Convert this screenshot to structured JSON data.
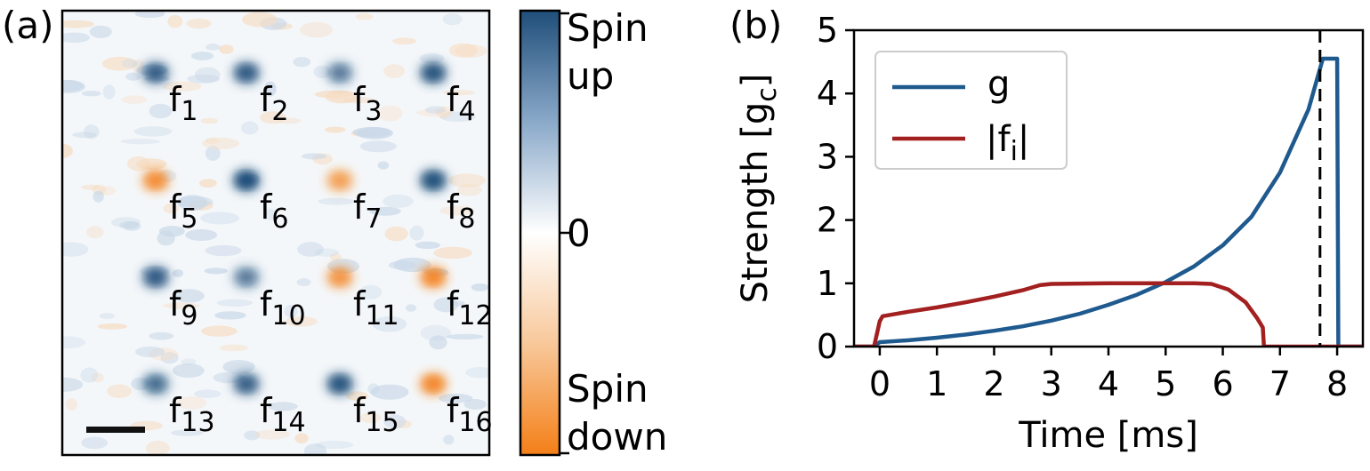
{
  "panel_a": {
    "label": "(a)",
    "spots": [
      {
        "name": "f",
        "sub": "1",
        "spin": "up",
        "strength": 0.8
      },
      {
        "name": "f",
        "sub": "2",
        "spin": "up",
        "strength": 0.85
      },
      {
        "name": "f",
        "sub": "3",
        "spin": "up",
        "strength": 0.6
      },
      {
        "name": "f",
        "sub": "4",
        "spin": "up",
        "strength": 0.9
      },
      {
        "name": "f",
        "sub": "5",
        "spin": "down",
        "strength": 0.8
      },
      {
        "name": "f",
        "sub": "6",
        "spin": "up",
        "strength": 1.0
      },
      {
        "name": "f",
        "sub": "7",
        "spin": "down",
        "strength": 0.6
      },
      {
        "name": "f",
        "sub": "8",
        "spin": "up",
        "strength": 0.95
      },
      {
        "name": "f",
        "sub": "9",
        "spin": "up",
        "strength": 0.85
      },
      {
        "name": "f",
        "sub": "10",
        "spin": "up",
        "strength": 0.6
      },
      {
        "name": "f",
        "sub": "11",
        "spin": "down",
        "strength": 0.7
      },
      {
        "name": "f",
        "sub": "12",
        "spin": "down",
        "strength": 0.85
      },
      {
        "name": "f",
        "sub": "13",
        "spin": "up",
        "strength": 0.7
      },
      {
        "name": "f",
        "sub": "14",
        "spin": "up",
        "strength": 0.8
      },
      {
        "name": "f",
        "sub": "15",
        "spin": "up",
        "strength": 0.9
      },
      {
        "name": "f",
        "sub": "16",
        "spin": "down",
        "strength": 0.85
      }
    ],
    "colorbar": {
      "top_label_line1": "Spin",
      "top_label_line2": "up",
      "mid_label": "0",
      "bottom_label_line1": "Spin",
      "bottom_label_line2": "down",
      "color_up": "#1f4e79",
      "color_mid": "#ffffff",
      "color_down": "#f47f17"
    }
  },
  "chart_data": {
    "label": "(b)",
    "type": "line",
    "xlabel": "Time [ms]",
    "ylabel_main": "Strength [g",
    "ylabel_sub": "c",
    "ylabel_end": "]",
    "xlim": [
      -0.45,
      8.45
    ],
    "ylim": [
      0,
      5
    ],
    "xticks": [
      "0",
      "1",
      "2",
      "3",
      "4",
      "5",
      "6",
      "7",
      "8"
    ],
    "yticks": [
      "0",
      "1",
      "2",
      "3",
      "4",
      "5"
    ],
    "vline_x": 7.7,
    "series": [
      {
        "name": "g",
        "color": "#1f5a8f",
        "x": [
          -0.45,
          -0.1,
          0.0,
          0.5,
          1.0,
          1.5,
          2.0,
          2.5,
          3.0,
          3.5,
          4.0,
          4.5,
          5.0,
          5.5,
          6.0,
          6.5,
          7.0,
          7.5,
          7.75,
          7.8,
          8.0,
          8.02,
          8.45
        ],
        "y": [
          0,
          0,
          0.07,
          0.1,
          0.14,
          0.19,
          0.25,
          0.32,
          0.41,
          0.52,
          0.66,
          0.82,
          1.02,
          1.27,
          1.6,
          2.05,
          2.75,
          3.75,
          4.55,
          4.55,
          4.55,
          0,
          0
        ]
      },
      {
        "name": "|f",
        "name_sub": "i",
        "name_end": "|",
        "color": "#a32020",
        "x": [
          -0.45,
          -0.1,
          0.0,
          0.05,
          0.5,
          1.0,
          1.5,
          2.0,
          2.5,
          2.8,
          3.0,
          4.0,
          5.0,
          5.5,
          5.8,
          6.1,
          6.4,
          6.6,
          6.7,
          6.72,
          8.45
        ],
        "y": [
          0,
          0,
          0.4,
          0.48,
          0.55,
          0.62,
          0.7,
          0.79,
          0.89,
          0.97,
          0.99,
          1.0,
          1.0,
          1.0,
          0.99,
          0.9,
          0.7,
          0.45,
          0.3,
          0,
          0
        ]
      }
    ],
    "legend": "top-left"
  }
}
